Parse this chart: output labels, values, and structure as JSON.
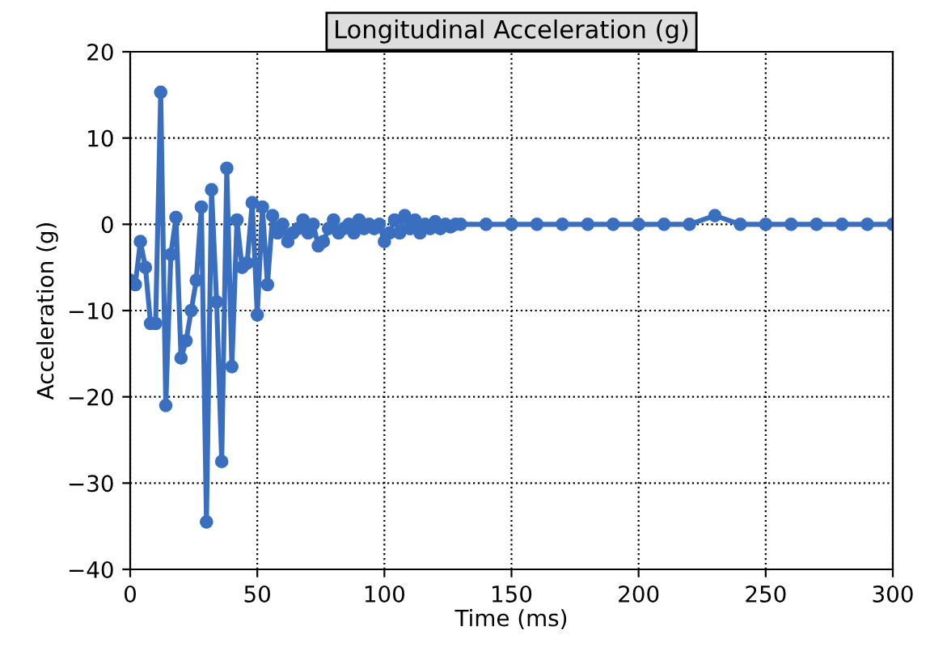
{
  "chart_data": {
    "type": "line",
    "title": "Longitudinal Acceleration (g)",
    "xlabel": "Time (ms)",
    "ylabel": "Acceleration (g)",
    "x": [
      0,
      2,
      4,
      6,
      8,
      10,
      12,
      14,
      16,
      18,
      20,
      22,
      24,
      26,
      28,
      30,
      32,
      34,
      36,
      38,
      40,
      42,
      44,
      46,
      48,
      50,
      52,
      54,
      56,
      58,
      60,
      62,
      64,
      66,
      68,
      70,
      72,
      74,
      76,
      78,
      80,
      82,
      84,
      86,
      88,
      90,
      92,
      94,
      96,
      98,
      100,
      102,
      104,
      106,
      108,
      110,
      112,
      114,
      116,
      118,
      120,
      122,
      124,
      126,
      128,
      130,
      140,
      150,
      160,
      170,
      180,
      190,
      200,
      210,
      220,
      230,
      240,
      250,
      260,
      270,
      280,
      290,
      300
    ],
    "series": [
      {
        "color": "#3a6fc0",
        "values": [
          -6.5,
          -7,
          -2,
          -5,
          -11.5,
          -11.5,
          15.3,
          -21,
          -3.5,
          0.8,
          -15.5,
          -13.5,
          -10,
          -6.5,
          2,
          -34.5,
          4,
          -9,
          -27.5,
          6.5,
          -16.5,
          0.5,
          -5,
          -4.5,
          2.5,
          -10.5,
          2,
          -7,
          1,
          -1,
          0,
          -2,
          -1,
          -0.5,
          0.5,
          -1,
          0,
          -2.5,
          -2,
          -0.5,
          0.5,
          -1,
          -0.5,
          0,
          -1,
          0.5,
          -0.5,
          0,
          -0.5,
          0,
          -2,
          -1,
          0.5,
          -1,
          1,
          -0.5,
          0.5,
          -1,
          0,
          -0.5,
          0.3,
          -0.5,
          0,
          -0.3,
          0,
          0,
          0,
          0,
          0,
          0,
          0,
          0,
          0,
          0,
          0,
          1,
          0,
          0,
          0,
          0,
          0,
          0,
          0
        ]
      }
    ],
    "xlim": [
      0,
      300
    ],
    "xticks": [
      0,
      50,
      100,
      150,
      200,
      250,
      300
    ],
    "ylim": [
      -40,
      20
    ],
    "yticks": [
      {
        "value": -40,
        "label": "−40"
      },
      {
        "value": -30,
        "label": "−30"
      },
      {
        "value": -20,
        "label": "−20"
      },
      {
        "value": -10,
        "label": "−10"
      },
      0,
      10,
      20
    ],
    "grid": true,
    "marker": "circle",
    "line_style": "solid"
  }
}
